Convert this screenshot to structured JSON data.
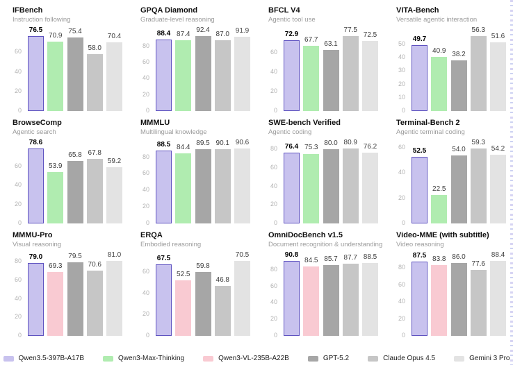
{
  "palette": {
    "qwen35": {
      "label": "Qwen3.5-397B-A17B",
      "fill": "#c8c2ee",
      "border": "#5e52c0"
    },
    "qwen3max": {
      "label": "Qwen3-Max-Thinking",
      "fill": "#b0ecb0"
    },
    "qwen3vl": {
      "label": "Qwen3-VL-235B-A22B",
      "fill": "#f9cad2"
    },
    "gpt52": {
      "label": "GPT-5.2",
      "fill": "#a6a6a6"
    },
    "claude": {
      "label": "Claude Opus 4.5",
      "fill": "#c6c6c6"
    },
    "gemini": {
      "label": "Gemini 3 Pro",
      "fill": "#e3e3e3"
    }
  },
  "legend": [
    "qwen35",
    "qwen3max",
    "qwen3vl",
    "gpt52",
    "claude",
    "gemini"
  ],
  "chart_data": [
    {
      "type": "bar",
      "title": "IFBench",
      "subtitle": "Instruction following",
      "models": [
        "qwen35",
        "qwen3max",
        "gpt52",
        "claude",
        "gemini"
      ],
      "values": [
        76.5,
        70.9,
        75.4,
        58.0,
        70.4
      ],
      "yticks": [
        0,
        20,
        40,
        60
      ]
    },
    {
      "type": "bar",
      "title": "GPQA Diamond",
      "subtitle": "Graduate-level reasoning",
      "models": [
        "qwen35",
        "qwen3max",
        "gpt52",
        "claude",
        "gemini"
      ],
      "values": [
        88.4,
        87.4,
        92.4,
        87.0,
        91.9
      ],
      "yticks": [
        0,
        20,
        40,
        60,
        80
      ]
    },
    {
      "type": "bar",
      "title": "BFCL V4",
      "subtitle": "Agentic tool use",
      "models": [
        "qwen35",
        "qwen3max",
        "gpt52",
        "claude",
        "gemini"
      ],
      "values": [
        72.9,
        67.7,
        63.1,
        77.5,
        72.5
      ],
      "yticks": [
        0,
        20,
        40,
        60
      ]
    },
    {
      "type": "bar",
      "title": "VITA-Bench",
      "subtitle": "Versatile agentic interaction",
      "models": [
        "qwen35",
        "qwen3max",
        "gpt52",
        "claude",
        "gemini"
      ],
      "values": [
        49.7,
        40.9,
        38.2,
        56.3,
        51.6
      ],
      "yticks": [
        0,
        10,
        20,
        30,
        40,
        50
      ]
    },
    {
      "type": "bar",
      "title": "BrowseComp",
      "subtitle": "Agentic search",
      "models": [
        "qwen35",
        "qwen3max",
        "gpt52",
        "claude",
        "gemini"
      ],
      "values": [
        78.6,
        53.9,
        65.8,
        67.8,
        59.2
      ],
      "yticks": [
        0,
        20,
        40,
        60
      ]
    },
    {
      "type": "bar",
      "title": "MMMLU",
      "subtitle": "Multilingual knowledge",
      "models": [
        "qwen35",
        "qwen3max",
        "gpt52",
        "claude",
        "gemini"
      ],
      "values": [
        88.5,
        84.4,
        89.5,
        90.1,
        90.6
      ],
      "yticks": [
        0,
        20,
        40,
        60,
        80
      ]
    },
    {
      "type": "bar",
      "title": "SWE-bench Verified",
      "subtitle": "Agentic coding",
      "models": [
        "qwen35",
        "qwen3max",
        "gpt52",
        "claude",
        "gemini"
      ],
      "values": [
        76.4,
        75.3,
        80.0,
        80.9,
        76.2
      ],
      "yticks": [
        0,
        20,
        40,
        60,
        80
      ]
    },
    {
      "type": "bar",
      "title": "Terminal-Bench 2",
      "subtitle": "Agentic terminal coding",
      "models": [
        "qwen35",
        "qwen3max",
        "gpt52",
        "claude",
        "gemini"
      ],
      "values": [
        52.5,
        22.5,
        54.0,
        59.3,
        54.2
      ],
      "yticks": [
        0,
        20,
        40,
        60
      ]
    },
    {
      "type": "bar",
      "title": "MMMU-Pro",
      "subtitle": "Visual reasoning",
      "models": [
        "qwen35",
        "qwen3vl",
        "gpt52",
        "claude",
        "gemini"
      ],
      "values": [
        79.0,
        69.3,
        79.5,
        70.6,
        81.0
      ],
      "yticks": [
        0,
        20,
        40,
        60,
        80
      ]
    },
    {
      "type": "bar",
      "title": "ERQA",
      "subtitle": "Embodied reasoning",
      "models": [
        "qwen35",
        "qwen3vl",
        "gpt52",
        "claude",
        "gemini"
      ],
      "values": [
        67.5,
        52.5,
        59.8,
        46.8,
        70.5
      ],
      "yticks": [
        0,
        20,
        40,
        60
      ]
    },
    {
      "type": "bar",
      "title": "OmniDocBench v1.5",
      "subtitle": "Document recognition & understanding",
      "models": [
        "qwen35",
        "qwen3vl",
        "gpt52",
        "claude",
        "gemini"
      ],
      "values": [
        90.8,
        84.5,
        85.7,
        87.7,
        88.5
      ],
      "yticks": [
        0,
        20,
        40,
        60,
        80
      ]
    },
    {
      "type": "bar",
      "title": "Video-MME (with subtitle)",
      "subtitle": "Video reasoning",
      "models": [
        "qwen35",
        "qwen3vl",
        "gpt52",
        "claude",
        "gemini"
      ],
      "values": [
        87.5,
        83.8,
        86.0,
        77.6,
        88.4
      ],
      "yticks": [
        0,
        20,
        40,
        60,
        80
      ]
    }
  ]
}
